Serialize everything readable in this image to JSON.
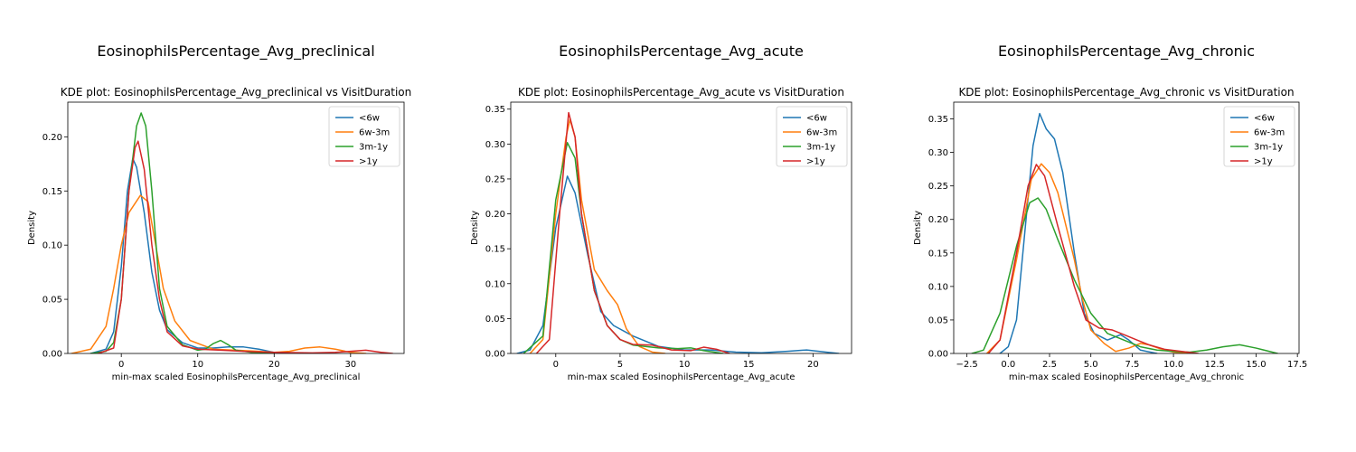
{
  "chart_data": [
    {
      "type": "line",
      "title": "EosinophilsPercentage_Avg_preclinical",
      "subtitle": "KDE plot:  EosinophilsPercentage_Avg_preclinical vs VisitDuration",
      "xlabel": "min-max scaled EosinophilsPercentage_Avg_preclinical",
      "ylabel": "Density",
      "xlim": [
        -7,
        37
      ],
      "ylim": [
        0,
        0.232
      ],
      "xticks": [
        0,
        10,
        20,
        30
      ],
      "yticks": [
        0.0,
        0.05,
        0.1,
        0.15,
        0.2
      ],
      "xtick_labels": [
        "0",
        "10",
        "20",
        "30"
      ],
      "ytick_labels": [
        "0.00",
        "0.05",
        "0.10",
        "0.15",
        "0.20"
      ],
      "legend": "top-right",
      "grid": false,
      "series": [
        {
          "name": "<6w",
          "color": "#1f77b4",
          "points": [
            [
              -4,
              0
            ],
            [
              -2,
              0.004
            ],
            [
              -1,
              0.02
            ],
            [
              0,
              0.08
            ],
            [
              0.8,
              0.15
            ],
            [
              1.5,
              0.18
            ],
            [
              2,
              0.172
            ],
            [
              3,
              0.13
            ],
            [
              4,
              0.075
            ],
            [
              5,
              0.04
            ],
            [
              6,
              0.022
            ],
            [
              8,
              0.01
            ],
            [
              10,
              0.005
            ],
            [
              12,
              0.005
            ],
            [
              14,
              0.006
            ],
            [
              16,
              0.006
            ],
            [
              18,
              0.004
            ],
            [
              20,
              0.001
            ],
            [
              22,
              0
            ]
          ]
        },
        {
          "name": "6w-3m",
          "color": "#ff7f0e",
          "points": [
            [
              -6.5,
              0
            ],
            [
              -4,
              0.004
            ],
            [
              -2,
              0.025
            ],
            [
              -1,
              0.06
            ],
            [
              0,
              0.1
            ],
            [
              1,
              0.13
            ],
            [
              2.5,
              0.146
            ],
            [
              3.5,
              0.14
            ],
            [
              4.5,
              0.1
            ],
            [
              5.5,
              0.06
            ],
            [
              7,
              0.03
            ],
            [
              9,
              0.012
            ],
            [
              12,
              0.004
            ],
            [
              15,
              0.003
            ],
            [
              18,
              0.002
            ],
            [
              20,
              0.001
            ],
            [
              22,
              0.002
            ],
            [
              24,
              0.005
            ],
            [
              26,
              0.006
            ],
            [
              28,
              0.004
            ],
            [
              30,
              0.001
            ],
            [
              32,
              0
            ]
          ]
        },
        {
          "name": "3m-1y",
          "color": "#2ca02c",
          "points": [
            [
              -4,
              0
            ],
            [
              -2,
              0.002
            ],
            [
              -1,
              0.01
            ],
            [
              0,
              0.05
            ],
            [
              1,
              0.15
            ],
            [
              2,
              0.21
            ],
            [
              2.6,
              0.222
            ],
            [
              3.2,
              0.21
            ],
            [
              4,
              0.15
            ],
            [
              5,
              0.06
            ],
            [
              6,
              0.025
            ],
            [
              8,
              0.008
            ],
            [
              10,
              0.003
            ],
            [
              11,
              0.004
            ],
            [
              12,
              0.009
            ],
            [
              13,
              0.012
            ],
            [
              14,
              0.008
            ],
            [
              15,
              0.003
            ],
            [
              17,
              0.001
            ],
            [
              20,
              0
            ]
          ]
        },
        {
          "name": ">1y",
          "color": "#d62728",
          "points": [
            [
              -3,
              0
            ],
            [
              -1,
              0.005
            ],
            [
              0,
              0.05
            ],
            [
              1,
              0.15
            ],
            [
              1.8,
              0.19
            ],
            [
              2.2,
              0.196
            ],
            [
              3,
              0.17
            ],
            [
              4,
              0.1
            ],
            [
              5,
              0.05
            ],
            [
              6,
              0.02
            ],
            [
              8,
              0.007
            ],
            [
              10,
              0.004
            ],
            [
              13,
              0.003
            ],
            [
              16,
              0.002
            ],
            [
              20,
              0.001
            ],
            [
              25,
              0.0005
            ],
            [
              28,
              0.001
            ],
            [
              30,
              0.002
            ],
            [
              32,
              0.003
            ],
            [
              34,
              0.001
            ],
            [
              35.5,
              0
            ]
          ]
        }
      ]
    },
    {
      "type": "line",
      "title": "EosinophilsPercentage_Avg_acute",
      "subtitle": "KDE plot:  EosinophilsPercentage_Avg_acute vs VisitDuration",
      "xlabel": "min-max scaled EosinophilsPercentage_Avg_acute",
      "ylabel": "Density",
      "xlim": [
        -3.5,
        23
      ],
      "ylim": [
        0,
        0.36
      ],
      "xticks": [
        0,
        5,
        10,
        15,
        20
      ],
      "yticks": [
        0.0,
        0.05,
        0.1,
        0.15,
        0.2,
        0.25,
        0.3,
        0.35
      ],
      "xtick_labels": [
        "0",
        "5",
        "10",
        "15",
        "20"
      ],
      "ytick_labels": [
        "0.00",
        "0.05",
        "0.10",
        "0.15",
        "0.20",
        "0.25",
        "0.30",
        "0.35"
      ],
      "legend": "top-right",
      "grid": false,
      "series": [
        {
          "name": "<6w",
          "color": "#1f77b4",
          "points": [
            [
              -3,
              0
            ],
            [
              -2,
              0.005
            ],
            [
              -1,
              0.04
            ],
            [
              0,
              0.18
            ],
            [
              0.9,
              0.254
            ],
            [
              1.5,
              0.23
            ],
            [
              2.5,
              0.14
            ],
            [
              3.5,
              0.06
            ],
            [
              4.5,
              0.04
            ],
            [
              6,
              0.025
            ],
            [
              8,
              0.01
            ],
            [
              10,
              0.005
            ],
            [
              12,
              0.005
            ],
            [
              14,
              0.002
            ],
            [
              16,
              0.001
            ],
            [
              18,
              0.003
            ],
            [
              19.5,
              0.005
            ],
            [
              21,
              0.002
            ],
            [
              22,
              0
            ]
          ]
        },
        {
          "name": "6w-3m",
          "color": "#ff7f0e",
          "points": [
            [
              -2,
              0
            ],
            [
              -1,
              0.02
            ],
            [
              0,
              0.2
            ],
            [
              0.8,
              0.31
            ],
            [
              1.1,
              0.335
            ],
            [
              1.5,
              0.31
            ],
            [
              2,
              0.22
            ],
            [
              3,
              0.12
            ],
            [
              4,
              0.09
            ],
            [
              4.8,
              0.07
            ],
            [
              5.5,
              0.035
            ],
            [
              6.5,
              0.01
            ],
            [
              7.5,
              0.002
            ],
            [
              8.5,
              0
            ]
          ]
        },
        {
          "name": "3m-1y",
          "color": "#2ca02c",
          "points": [
            [
              -2.5,
              0
            ],
            [
              -1,
              0.025
            ],
            [
              0,
              0.22
            ],
            [
              0.9,
              0.302
            ],
            [
              1.5,
              0.28
            ],
            [
              2,
              0.2
            ],
            [
              3,
              0.09
            ],
            [
              4,
              0.04
            ],
            [
              5,
              0.02
            ],
            [
              6,
              0.012
            ],
            [
              8,
              0.008
            ],
            [
              9.5,
              0.007
            ],
            [
              10.5,
              0.008
            ],
            [
              11.5,
              0.004
            ],
            [
              13,
              0
            ]
          ]
        },
        {
          "name": ">1y",
          "color": "#d62728",
          "points": [
            [
              -1.5,
              0
            ],
            [
              -0.5,
              0.02
            ],
            [
              0.3,
              0.2
            ],
            [
              1,
              0.345
            ],
            [
              1.5,
              0.31
            ],
            [
              2,
              0.2
            ],
            [
              3,
              0.09
            ],
            [
              4,
              0.04
            ],
            [
              5,
              0.02
            ],
            [
              6,
              0.013
            ],
            [
              7.5,
              0.012
            ],
            [
              9,
              0.005
            ],
            [
              10.5,
              0.004
            ],
            [
              11.5,
              0.009
            ],
            [
              12.5,
              0.006
            ],
            [
              13.5,
              0
            ]
          ]
        }
      ]
    },
    {
      "type": "line",
      "title": "EosinophilsPercentage_Avg_chronic",
      "subtitle": "KDE plot:  EosinophilsPercentage_Avg_chronic vs VisitDuration",
      "xlabel": "min-max scaled EosinophilsPercentage_Avg_chronic",
      "ylabel": "Density",
      "xlim": [
        -3.3,
        17.6
      ],
      "ylim": [
        0,
        0.375
      ],
      "xticks": [
        -2.5,
        0.0,
        2.5,
        5.0,
        7.5,
        10.0,
        12.5,
        15.0,
        17.5
      ],
      "yticks": [
        0.0,
        0.05,
        0.1,
        0.15,
        0.2,
        0.25,
        0.3,
        0.35
      ],
      "xtick_labels": [
        "−2.5",
        "0.0",
        "2.5",
        "5.0",
        "7.5",
        "10.0",
        "12.5",
        "15.0",
        "17.5"
      ],
      "ytick_labels": [
        "0.00",
        "0.05",
        "0.10",
        "0.15",
        "0.20",
        "0.25",
        "0.30",
        "0.35"
      ],
      "legend": "top-right",
      "grid": false,
      "series": [
        {
          "name": "<6w",
          "color": "#1f77b4",
          "points": [
            [
              -0.5,
              0
            ],
            [
              0,
              0.01
            ],
            [
              0.5,
              0.05
            ],
            [
              1,
              0.18
            ],
            [
              1.5,
              0.31
            ],
            [
              1.9,
              0.358
            ],
            [
              2.3,
              0.335
            ],
            [
              2.8,
              0.32
            ],
            [
              3.3,
              0.27
            ],
            [
              4,
              0.15
            ],
            [
              4.6,
              0.06
            ],
            [
              5.2,
              0.03
            ],
            [
              6,
              0.02
            ],
            [
              6.8,
              0.028
            ],
            [
              7.3,
              0.02
            ],
            [
              8,
              0.005
            ],
            [
              9,
              0
            ]
          ]
        },
        {
          "name": "6w-3m",
          "color": "#ff7f0e",
          "points": [
            [
              -1.3,
              0
            ],
            [
              -0.5,
              0.02
            ],
            [
              0.5,
              0.14
            ],
            [
              1.4,
              0.26
            ],
            [
              2,
              0.283
            ],
            [
              2.5,
              0.27
            ],
            [
              3,
              0.24
            ],
            [
              3.5,
              0.19
            ],
            [
              4,
              0.14
            ],
            [
              4.5,
              0.08
            ],
            [
              5,
              0.035
            ],
            [
              5.8,
              0.015
            ],
            [
              6.5,
              0.003
            ],
            [
              7.3,
              0.008
            ],
            [
              8,
              0.015
            ],
            [
              8.5,
              0.013
            ],
            [
              9.2,
              0.007
            ],
            [
              10,
              0.002
            ],
            [
              11,
              0
            ]
          ]
        },
        {
          "name": "3m-1y",
          "color": "#2ca02c",
          "points": [
            [
              -2.2,
              0
            ],
            [
              -1.5,
              0.005
            ],
            [
              -0.5,
              0.06
            ],
            [
              0.5,
              0.16
            ],
            [
              1.3,
              0.225
            ],
            [
              1.8,
              0.232
            ],
            [
              2.3,
              0.215
            ],
            [
              3,
              0.17
            ],
            [
              4,
              0.11
            ],
            [
              5,
              0.06
            ],
            [
              6,
              0.03
            ],
            [
              7,
              0.02
            ],
            [
              8,
              0.01
            ],
            [
              9,
              0.005
            ],
            [
              10,
              0.003
            ],
            [
              11,
              0.002
            ],
            [
              12,
              0.005
            ],
            [
              13,
              0.01
            ],
            [
              14,
              0.013
            ],
            [
              15,
              0.008
            ],
            [
              16.3,
              0
            ]
          ]
        },
        {
          "name": ">1y",
          "color": "#d62728",
          "points": [
            [
              -1.2,
              0
            ],
            [
              -0.5,
              0.02
            ],
            [
              0.5,
              0.15
            ],
            [
              1.2,
              0.25
            ],
            [
              1.7,
              0.282
            ],
            [
              2.2,
              0.265
            ],
            [
              3,
              0.19
            ],
            [
              4,
              0.1
            ],
            [
              4.7,
              0.05
            ],
            [
              5.5,
              0.038
            ],
            [
              6.3,
              0.035
            ],
            [
              7,
              0.028
            ],
            [
              7.8,
              0.02
            ],
            [
              8.5,
              0.013
            ],
            [
              9.5,
              0.006
            ],
            [
              10.5,
              0.003
            ],
            [
              11.5,
              0
            ]
          ]
        }
      ]
    }
  ]
}
